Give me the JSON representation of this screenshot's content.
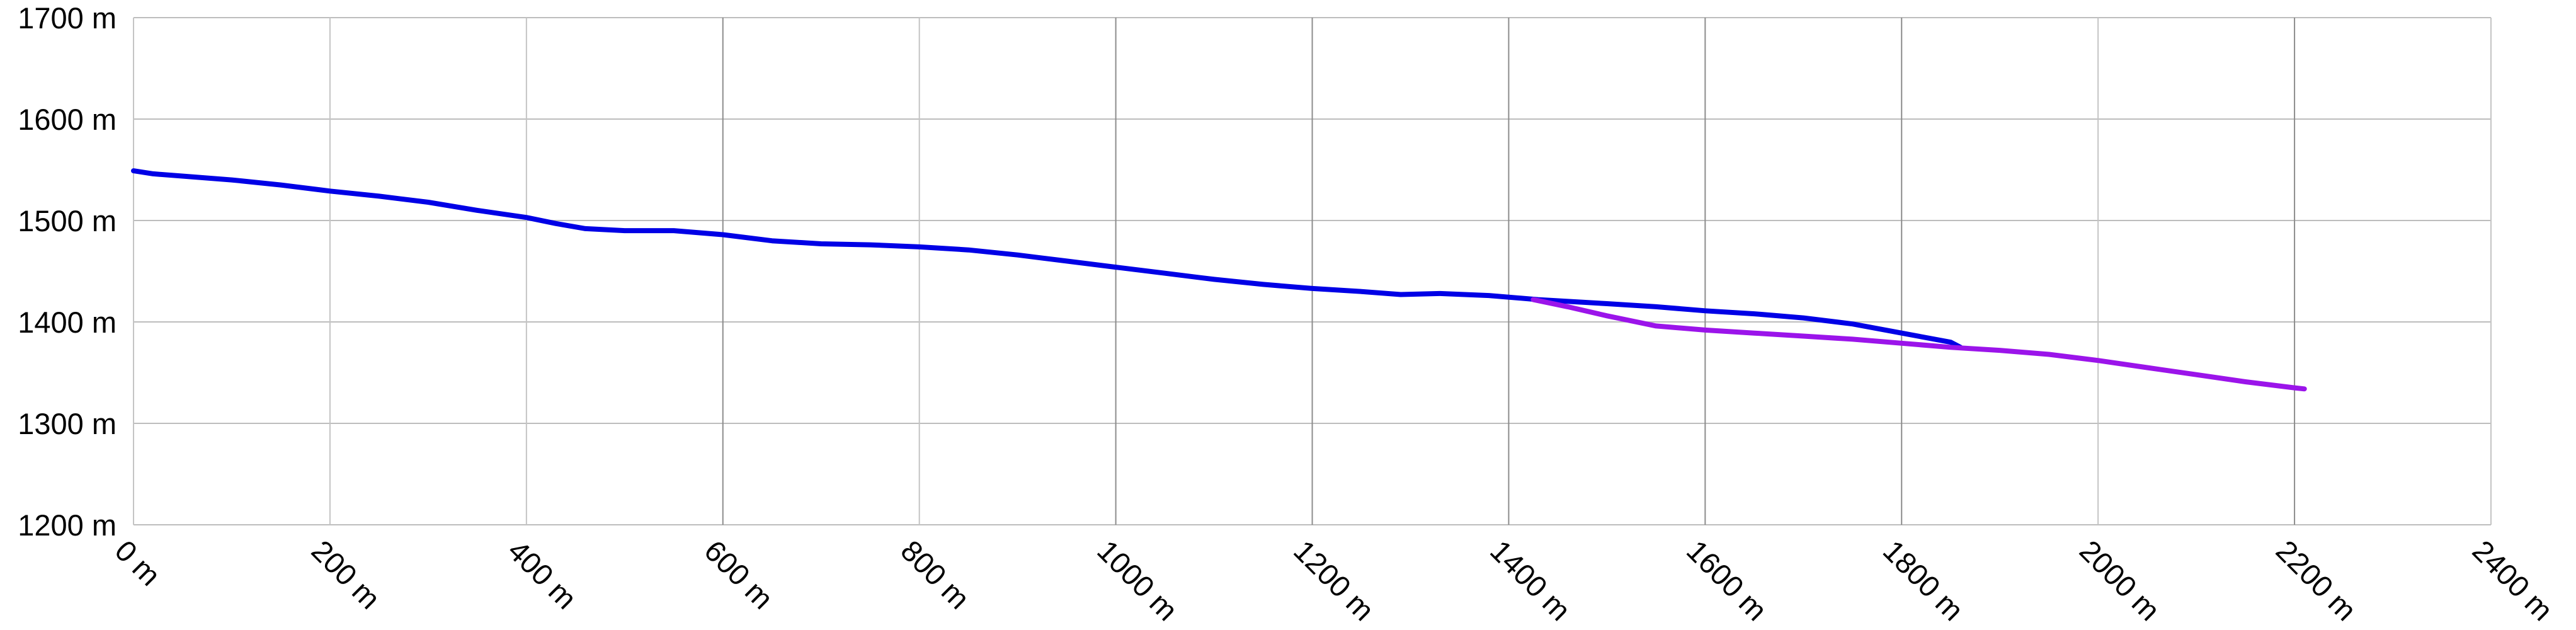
{
  "chart_data": {
    "type": "line",
    "title": "",
    "xlabel": "",
    "ylabel": "",
    "x_unit": "m",
    "y_unit": "m",
    "xlim": [
      0,
      2400
    ],
    "ylim": [
      1200,
      1700
    ],
    "x_ticks": [
      0,
      200,
      400,
      600,
      800,
      1000,
      1200,
      1400,
      1600,
      1800,
      2000,
      2200,
      2400
    ],
    "y_ticks": [
      1200,
      1300,
      1400,
      1500,
      1600,
      1700
    ],
    "x_tick_labels": [
      "0 m",
      "200 m",
      "400 m",
      "600 m",
      "800 m",
      "1000 m",
      "1200 m",
      "1400 m",
      "1600 m",
      "1800 m",
      "2000 m",
      "2200 m",
      "2400 m"
    ],
    "y_tick_labels": [
      "1200 m",
      "1300 m",
      "1400 m",
      "1500 m",
      "1600 m",
      "1700 m"
    ],
    "grid": true,
    "legend": "none",
    "series": [
      {
        "color": "#0000e6",
        "x": [
          0,
          20,
          60,
          100,
          150,
          200,
          250,
          300,
          350,
          400,
          430,
          460,
          500,
          550,
          600,
          650,
          700,
          750,
          800,
          850,
          900,
          950,
          1000,
          1050,
          1100,
          1150,
          1200,
          1250,
          1290,
          1330,
          1380,
          1430,
          1500,
          1550,
          1600,
          1650,
          1700,
          1750,
          1800,
          1850,
          1860
        ],
        "y": [
          1549,
          1546,
          1543,
          1540,
          1535,
          1529,
          1524,
          1518,
          1510,
          1503,
          1497,
          1492,
          1490,
          1490,
          1486,
          1480,
          1477,
          1476,
          1474,
          1471,
          1466,
          1460,
          1454,
          1448,
          1442,
          1437,
          1433,
          1430,
          1427,
          1428,
          1426,
          1422,
          1418,
          1415,
          1411,
          1408,
          1404,
          1398,
          1389,
          1380,
          1375
        ]
      },
      {
        "color": "#9b14ea",
        "x": [
          1425,
          1460,
          1500,
          1550,
          1600,
          1650,
          1700,
          1750,
          1800,
          1850,
          1900,
          1950,
          2000,
          2050,
          2100,
          2150,
          2200,
          2210
        ],
        "y": [
          1422,
          1415,
          1406,
          1396,
          1392,
          1389,
          1386,
          1383,
          1379,
          1375,
          1372,
          1368,
          1362,
          1355,
          1348,
          1341,
          1335,
          1334
        ]
      }
    ]
  }
}
